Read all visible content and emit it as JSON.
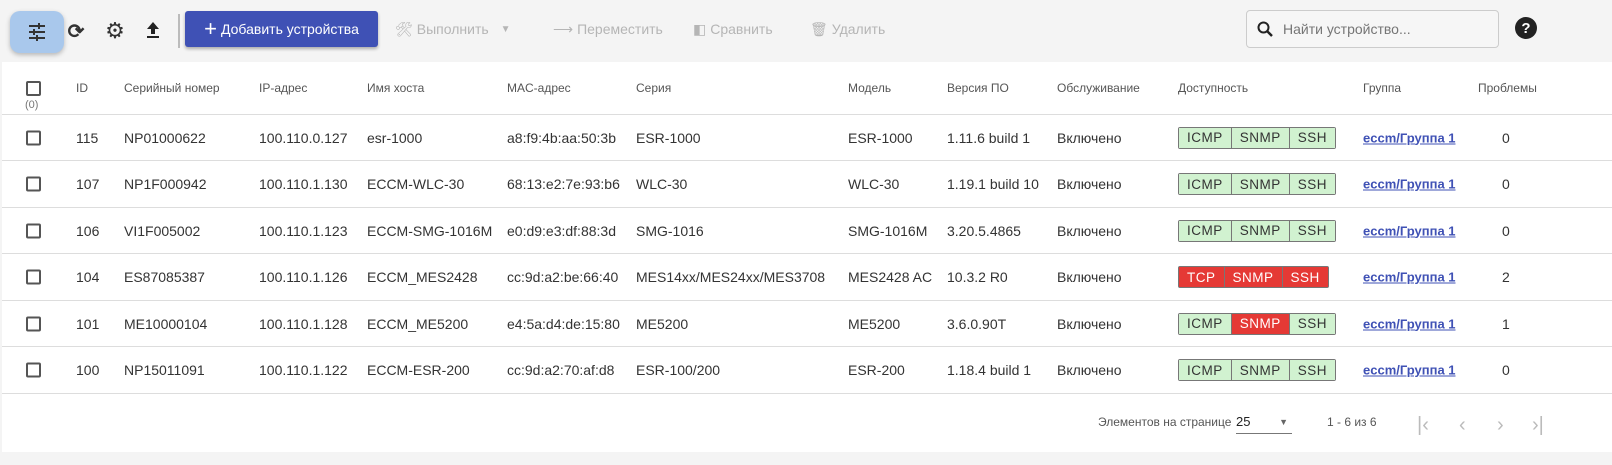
{
  "toolbar": {
    "add_label": "Добавить устройства",
    "execute_label": "Выполнить",
    "move_label": "Переместить",
    "compare_label": "Сравнить",
    "delete_label": "Удалить",
    "search_placeholder": "Найти устройство...",
    "help": "?"
  },
  "table": {
    "selected_count": "(0)",
    "columns": [
      "ID",
      "Серийный номер",
      "IP-адрес",
      "Имя хоста",
      "MAC-адрес",
      "Серия",
      "Модель",
      "Версия ПО",
      "Обслуживание",
      "Доступность",
      "Группа",
      "Проблемы"
    ],
    "rows": [
      {
        "id": "115",
        "serial": "NP01000622",
        "ip": "100.110.0.127",
        "host": "esr-1000",
        "mac": "a8:f9:4b:aa:50:3b",
        "series": "ESR-1000",
        "model": "ESR-1000",
        "version": "1.11.6 build 1",
        "service": "Включено",
        "avail": [
          {
            "label": "ICMP",
            "status": "ok"
          },
          {
            "label": "SNMP",
            "status": "ok"
          },
          {
            "label": "SSH",
            "status": "ok"
          }
        ],
        "group": "eccm/Группа 1",
        "problems": "0"
      },
      {
        "id": "107",
        "serial": "NP1F000942",
        "ip": "100.110.1.130",
        "host": "ECCM-WLC-30",
        "mac": "68:13:e2:7e:93:b6",
        "series": "WLC-30",
        "model": "WLC-30",
        "version": "1.19.1 build 10",
        "service": "Включено",
        "avail": [
          {
            "label": "ICMP",
            "status": "ok"
          },
          {
            "label": "SNMP",
            "status": "ok"
          },
          {
            "label": "SSH",
            "status": "ok"
          }
        ],
        "group": "eccm/Группа 1",
        "problems": "0"
      },
      {
        "id": "106",
        "serial": "VI1F005002",
        "ip": "100.110.1.123",
        "host": "ECCM-SMG-1016M",
        "mac": "e0:d9:e3:df:88:3d",
        "series": "SMG-1016",
        "model": "SMG-1016M",
        "version": "3.20.5.4865",
        "service": "Включено",
        "avail": [
          {
            "label": "ICMP",
            "status": "ok"
          },
          {
            "label": "SNMP",
            "status": "ok"
          },
          {
            "label": "SSH",
            "status": "ok"
          }
        ],
        "group": "eccm/Группа 1",
        "problems": "0"
      },
      {
        "id": "104",
        "serial": "ES87085387",
        "ip": "100.110.1.126",
        "host": "ECCM_MES2428",
        "mac": "cc:9d:a2:be:66:40",
        "series": "MES14xx/MES24xx/MES3708",
        "model": "MES2428 AC",
        "version": "10.3.2 R0",
        "service": "Включено",
        "avail": [
          {
            "label": "TCP",
            "status": "bad"
          },
          {
            "label": "SNMP",
            "status": "bad"
          },
          {
            "label": "SSH",
            "status": "bad"
          }
        ],
        "group": "eccm/Группа 1",
        "problems": "2"
      },
      {
        "id": "101",
        "serial": "ME10000104",
        "ip": "100.110.1.128",
        "host": "ECCM_ME5200",
        "mac": "e4:5a:d4:de:15:80",
        "series": "ME5200",
        "model": "ME5200",
        "version": "3.6.0.90T",
        "service": "Включено",
        "avail": [
          {
            "label": "ICMP",
            "status": "ok"
          },
          {
            "label": "SNMP",
            "status": "bad"
          },
          {
            "label": "SSH",
            "status": "ok"
          }
        ],
        "group": "eccm/Группа 1",
        "problems": "1"
      },
      {
        "id": "100",
        "serial": "NP15011091",
        "ip": "100.110.1.122",
        "host": "ECCM-ESR-200",
        "mac": "cc:9d:a2:70:af:d8",
        "series": "ESR-100/200",
        "model": "ESR-200",
        "version": "1.18.4 build 1",
        "service": "Включено",
        "avail": [
          {
            "label": "ICMP",
            "status": "ok"
          },
          {
            "label": "SNMP",
            "status": "ok"
          },
          {
            "label": "SSH",
            "status": "ok"
          }
        ],
        "group": "eccm/Группа 1",
        "problems": "0"
      }
    ]
  },
  "footer": {
    "page_size_label": "Элементов на странице",
    "page_size": "25",
    "range": "1 - 6 из 6"
  },
  "colors": {
    "accent": "#3f51b5",
    "ok": "#d1f2d0",
    "bad": "#e53935",
    "filter_active": "#a9c8ec"
  }
}
